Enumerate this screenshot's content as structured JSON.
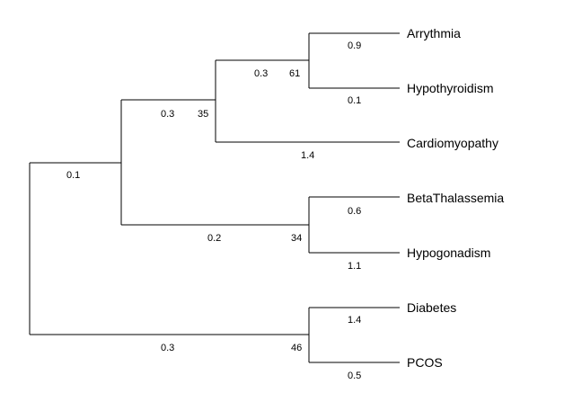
{
  "tree": {
    "leaves": {
      "arrythmia": "Arrythmia",
      "hypothyroidism": "Hypothyroidism",
      "cardiomyopathy": "Cardiomyopathy",
      "betathalassemia": "BetaThalassemia",
      "hypogonadism": "Hypogonadism",
      "diabetes": "Diabetes",
      "pcos": "PCOS"
    },
    "branch_lengths": {
      "root_to_upper": "0.1",
      "upper_to_cardio_clade": "0.3",
      "cardio_clade_to_arr_hypo": "0.3",
      "arrythmia": "0.9",
      "hypothyroidism": "0.1",
      "cardiomyopathy": "1.4",
      "upper_to_beta_hypo": "0.2",
      "betathalassemia": "0.6",
      "hypogonadism": "1.1",
      "root_to_diab_pcos": "0.3",
      "diabetes": "1.4",
      "pcos": "0.5"
    },
    "bootstrap": {
      "arr_hypo": "61",
      "cardio_clade": "35",
      "beta_hypo": "34",
      "diab_pcos": "46"
    }
  }
}
